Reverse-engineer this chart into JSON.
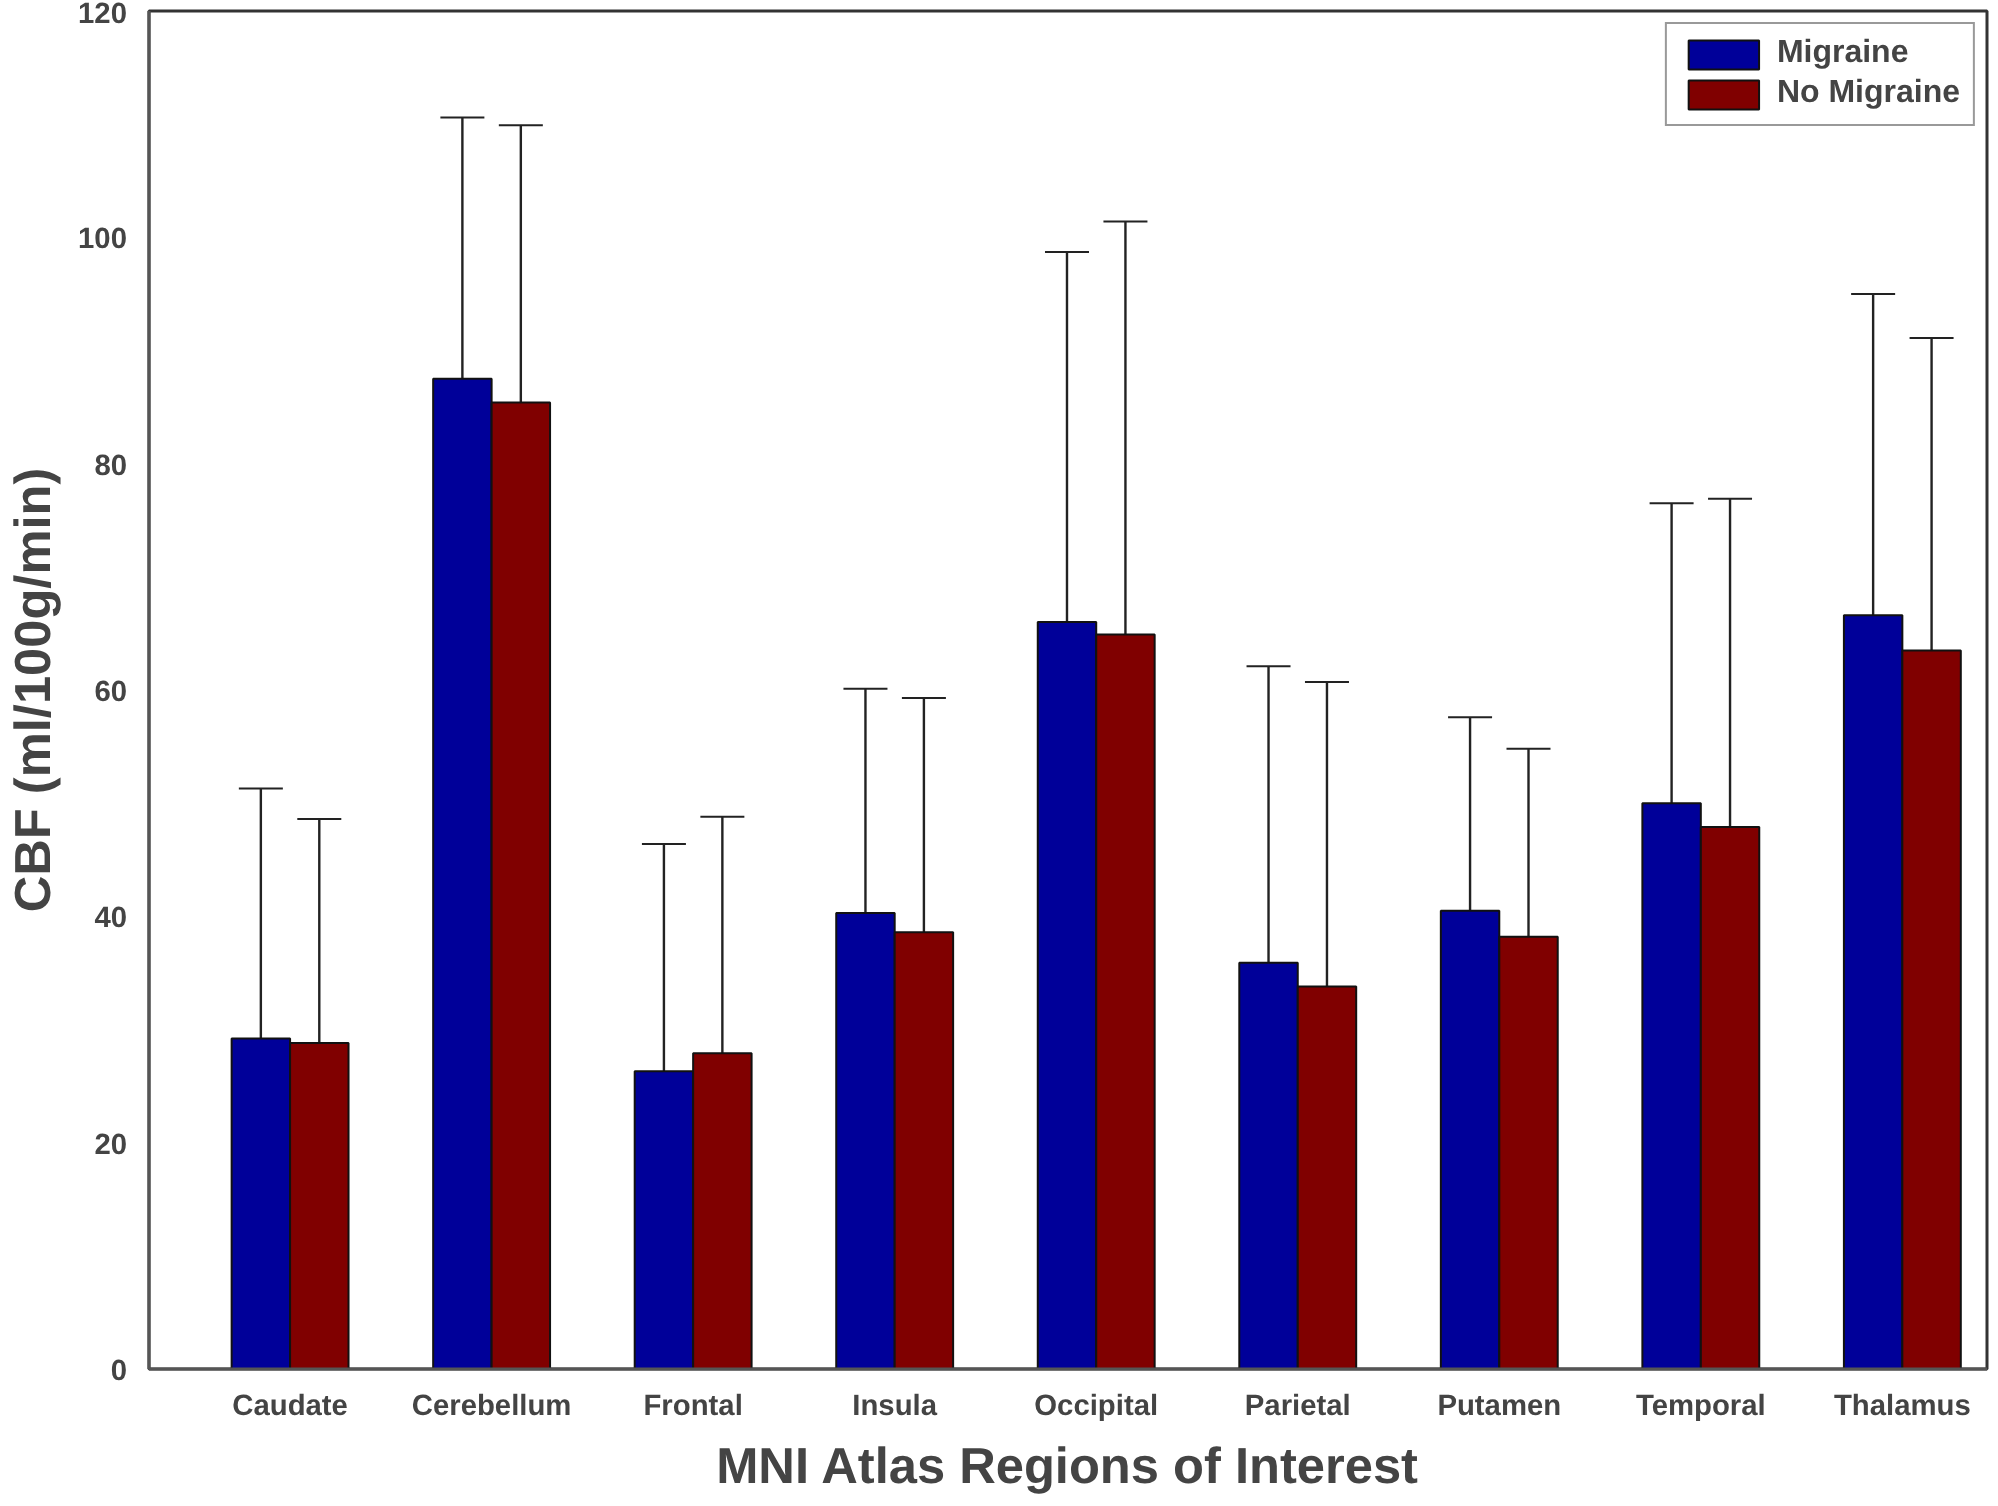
{
  "chart_data": {
    "type": "bar",
    "xlabel": "MNI Atlas Regions of Interest",
    "ylabel": "CBF (ml/100g/min)",
    "categories": [
      "Caudate",
      "Cerebellum",
      "Frontal",
      "Insula",
      "Occipital",
      "Parietal",
      "Putamen",
      "Temporal",
      "Thalamus"
    ],
    "series": [
      {
        "name": "Migraine",
        "color": "#000099",
        "values": [
          29.2,
          87.5,
          26.3,
          40.3,
          66.0,
          35.9,
          40.5,
          50.0,
          66.6
        ],
        "errors": [
          22.1,
          23.1,
          20.1,
          19.8,
          32.7,
          26.2,
          17.1,
          26.5,
          28.4
        ]
      },
      {
        "name": "No Migraine",
        "color": "#800000",
        "values": [
          28.8,
          85.4,
          27.9,
          38.6,
          64.9,
          33.8,
          38.2,
          47.9,
          63.5
        ],
        "errors": [
          19.8,
          24.5,
          20.9,
          20.7,
          36.5,
          26.9,
          16.6,
          29.0,
          27.6
        ]
      }
    ],
    "ylim": [
      0,
      120
    ],
    "yticks": [
      0,
      20,
      40,
      60,
      80,
      100,
      120
    ],
    "grid": false,
    "legend": "top right"
  }
}
